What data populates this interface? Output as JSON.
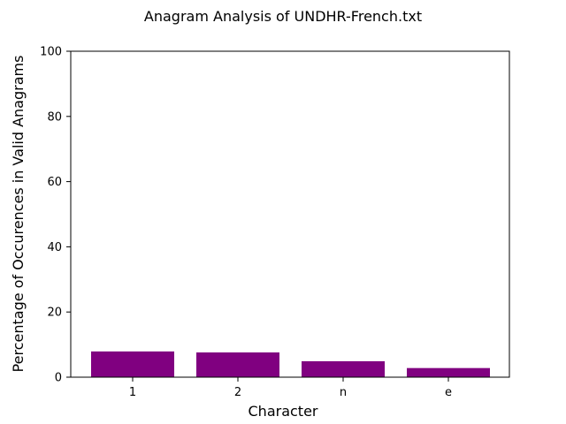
{
  "chart_data": {
    "type": "bar",
    "title": "Anagram Analysis of UNDHR-French.txt",
    "xlabel": "Character",
    "ylabel": "Percentage of Occurences in Valid Anagrams",
    "categories": [
      "1",
      "2",
      "n",
      "e"
    ],
    "values": [
      7.9,
      7.6,
      4.9,
      2.8
    ],
    "ylim": [
      0,
      100
    ],
    "yticks": [
      0,
      20,
      40,
      60,
      80,
      100
    ],
    "bar_color": "#800080",
    "grid": false,
    "legend": "none"
  }
}
